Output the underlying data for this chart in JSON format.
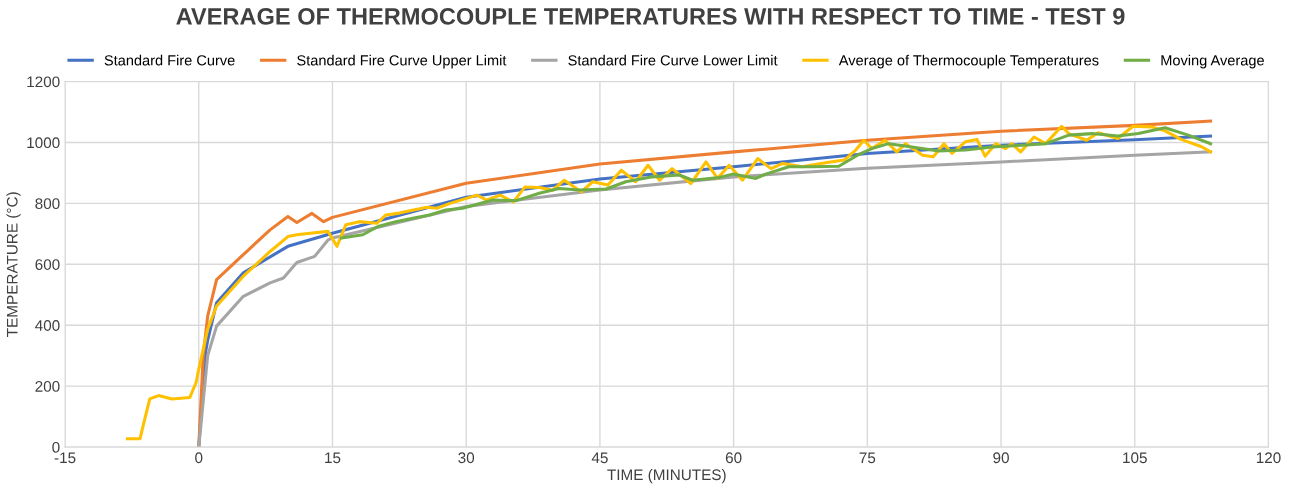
{
  "chart_data": {
    "type": "line",
    "title": "AVERAGE OF THERMOCOUPLE TEMPERATURES WITH RESPECT TO TIME - TEST 9",
    "xlabel": "TIME (MINUTES)",
    "ylabel": "TEMPERATURE (°C)",
    "xlim": [
      -15,
      120
    ],
    "xticks": [
      -15,
      0,
      15,
      30,
      45,
      60,
      75,
      90,
      105,
      120
    ],
    "ylim": [
      0,
      1200
    ],
    "yticks": [
      0,
      200,
      400,
      600,
      800,
      1000,
      1200
    ],
    "grid": true,
    "legend": "top",
    "marker": "none",
    "line_style": "solid",
    "series": [
      {
        "name": "Standard Fire Curve",
        "color": "#4472c4",
        "x": [
          0,
          0.75,
          1,
          2,
          5,
          10,
          15,
          30,
          45,
          60,
          75,
          90,
          105,
          113.5
        ],
        "values": [
          0,
          310,
          350,
          474,
          572,
          659,
          702,
          820,
          880,
          920,
          964,
          991,
          1009,
          1021
        ]
      },
      {
        "name": "Standard Fire Curve Upper Limit",
        "color": "#ed7d31",
        "x": [
          0,
          0.5,
          1,
          2,
          5,
          8,
          10,
          11,
          12.7,
          14,
          15,
          30,
          45,
          60,
          75,
          90,
          105,
          113.5
        ],
        "values": [
          0,
          300,
          430,
          550,
          632,
          713,
          757,
          737,
          767,
          740,
          754,
          866,
          929,
          969,
          1007,
          1037,
          1056,
          1070
        ]
      },
      {
        "name": "Standard Fire Curve Lower Limit",
        "color": "#a5a5a5",
        "x": [
          0,
          0.5,
          1,
          2,
          5,
          8,
          9.5,
          11,
          13,
          14.5,
          15,
          30,
          45,
          60,
          75,
          90,
          105,
          113.5
        ],
        "values": [
          0,
          150,
          300,
          397,
          495,
          539,
          555,
          606,
          626,
          680,
          686,
          790,
          844,
          887,
          915,
          936,
          958,
          969
        ]
      },
      {
        "name": "Average of Thermocouple Temperatures",
        "color": "#ffc000",
        "x": [
          -8,
          -6.6,
          -5.5,
          -4.5,
          -3,
          -1,
          -0.3,
          0,
          0.5,
          1,
          2,
          5,
          8,
          10,
          11,
          12.5,
          14.5,
          15.5,
          16.5,
          18,
          20,
          21,
          22.5,
          24.1,
          25.6,
          26.7,
          28.2,
          31.2,
          32.3,
          33.8,
          35.3,
          36.6,
          38.2,
          39.7,
          41.0,
          42.9,
          44.2,
          45.9,
          47.4,
          49.0,
          50.4,
          51.7,
          53.1,
          55.2,
          56.9,
          58.2,
          59.5,
          61.0,
          62.7,
          64.2,
          65.5,
          67.7,
          70.3,
          72.4,
          73.7,
          74.6,
          75.5,
          77.0,
          78.3,
          79.3,
          81.2,
          82.4,
          83.6,
          84.5,
          86.0,
          87.3,
          88.2,
          89.4,
          90.5,
          91.2,
          92.2,
          93.7,
          95.0,
          96.8,
          97.6,
          99.6,
          100.9,
          103.1,
          104.8,
          106.9,
          108.4,
          110.2,
          112.5,
          113.5
        ],
        "values": [
          27,
          27,
          158,
          169,
          158,
          163,
          212,
          256,
          321,
          387,
          463,
          561,
          642,
          691,
          697,
          702,
          708,
          659,
          730,
          740,
          735,
          762,
          768,
          778,
          787,
          784,
          800,
          827,
          811,
          827,
          805,
          854,
          852,
          843,
          876,
          838,
          871,
          860,
          909,
          871,
          925,
          876,
          914,
          865,
          936,
          882,
          925,
          876,
          947,
          914,
          931,
          920,
          933,
          942,
          975,
          1007,
          980,
          1007,
          969,
          996,
          958,
          953,
          996,
          964,
          1002,
          1010,
          955,
          996,
          980,
          996,
          969,
          1018,
          996,
          1053,
          1029,
          1007,
          1032,
          1013,
          1053,
          1051,
          1038,
          1010,
          986,
          969
        ]
      },
      {
        "name": "Moving Average",
        "color": "#70ad47",
        "x": [
          16.0,
          18.4,
          20.1,
          22.1,
          24.0,
          25.9,
          27.7,
          29.6,
          33.0,
          35.6,
          38.2,
          40.4,
          42.7,
          45.7,
          47.9,
          50.9,
          53.9,
          55.4,
          58.4,
          59.9,
          62.5,
          63.6,
          66.2,
          68.8,
          71.8,
          73.9,
          75.5,
          77.4,
          80.0,
          83.0,
          86.0,
          89.0,
          92.4,
          95.0,
          97.6,
          100.2,
          103.1,
          105.4,
          108.4,
          111.0,
          113.5
        ],
        "values": [
          686,
          697,
          724,
          740,
          751,
          762,
          778,
          784,
          811,
          809,
          833,
          849,
          844,
          847,
          871,
          887,
          893,
          876,
          885,
          896,
          882,
          896,
          920,
          920,
          922,
          958,
          980,
          996,
          985,
          972,
          975,
          985,
          991,
          996,
          1024,
          1029,
          1021,
          1029,
          1048,
          1024,
          996
        ]
      }
    ]
  }
}
